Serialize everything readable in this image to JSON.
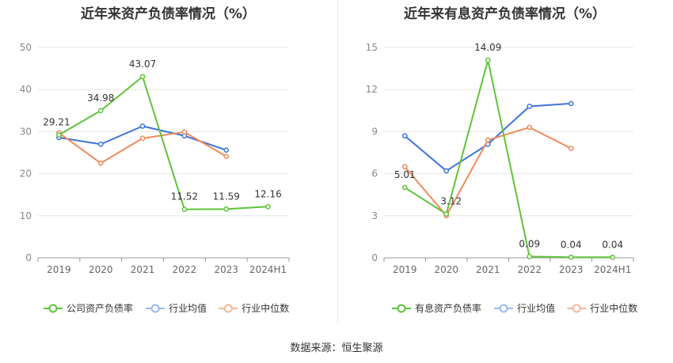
{
  "source_label": "数据来源：恒生聚源",
  "colors": {
    "green": "#5ec43a",
    "blue": "#3f74dd",
    "orange": "#f08a5d",
    "grid": "#e6e6e6",
    "axis": "#999999"
  },
  "chart_data": [
    {
      "type": "line",
      "title": "近年来资产负债率情况（%）",
      "categories": [
        "2019",
        "2020",
        "2021",
        "2022",
        "2023",
        "2024H1"
      ],
      "ylim": [
        0,
        50
      ],
      "yticks": [
        0,
        10,
        20,
        30,
        40,
        50
      ],
      "grid": true,
      "legend_position": "bottom",
      "series": [
        {
          "name": "公司资产负债率",
          "color": "#5ec43a",
          "values": [
            29.21,
            34.98,
            43.07,
            11.52,
            11.59,
            12.16
          ],
          "labels": [
            "29.21",
            "34.98",
            "43.07",
            "11.52",
            "11.59",
            "12.16"
          ]
        },
        {
          "name": "行业均值",
          "color": "#3f74dd",
          "values": [
            28.6,
            27.0,
            31.3,
            29.0,
            25.6,
            null
          ]
        },
        {
          "name": "行业中位数",
          "color": "#f08a5d",
          "values": [
            29.7,
            22.5,
            28.4,
            29.9,
            24.1,
            null
          ]
        }
      ]
    },
    {
      "type": "line",
      "title": "近年来有息资产负债率情况（%）",
      "categories": [
        "2019",
        "2020",
        "2021",
        "2022",
        "2023",
        "2024H1"
      ],
      "ylim": [
        0,
        15
      ],
      "yticks": [
        0,
        3,
        6,
        9,
        12,
        15
      ],
      "grid": true,
      "legend_position": "bottom",
      "series": [
        {
          "name": "有息资产负债率",
          "color": "#5ec43a",
          "values": [
            5.01,
            3.12,
            14.09,
            0.09,
            0.04,
            0.04
          ],
          "labels": [
            "5.01",
            "3.12",
            "14.09",
            "0.09",
            "0.04",
            "0.04"
          ]
        },
        {
          "name": "行业均值",
          "color": "#3f74dd",
          "values": [
            8.7,
            6.2,
            8.1,
            10.8,
            11.0,
            null
          ]
        },
        {
          "name": "行业中位数",
          "color": "#f08a5d",
          "values": [
            6.5,
            3.0,
            8.4,
            9.3,
            7.8,
            null
          ]
        }
      ]
    }
  ]
}
